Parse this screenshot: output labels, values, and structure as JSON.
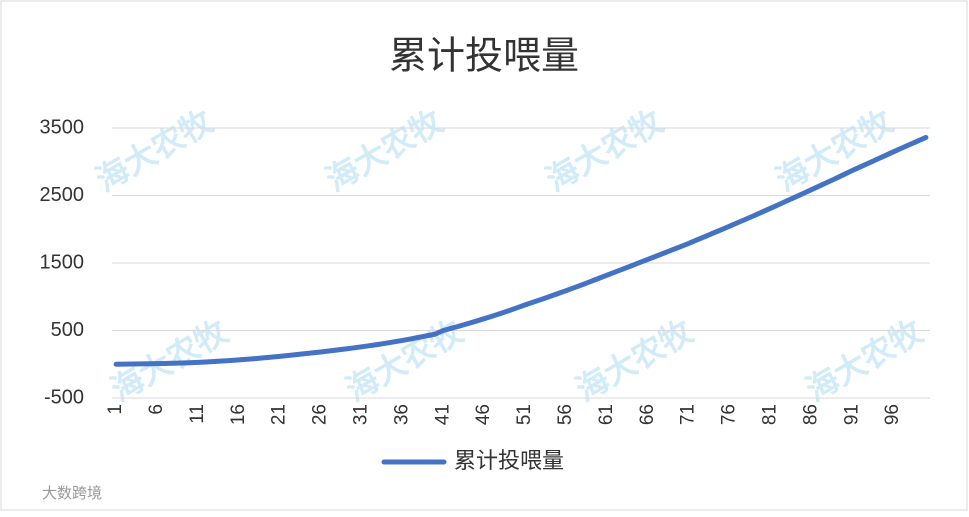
{
  "chart_data": {
    "type": "line",
    "title": "累计投喂量",
    "categories": [
      "1",
      null,
      null,
      null,
      null,
      "6",
      null,
      null,
      null,
      null,
      "11",
      null,
      null,
      null,
      null,
      "16",
      null,
      null,
      null,
      null,
      "21",
      null,
      null,
      null,
      null,
      "26",
      null,
      null,
      null,
      null,
      "31",
      null,
      null,
      null,
      null,
      "36",
      null,
      null,
      null,
      null,
      "41",
      null,
      null,
      null,
      null,
      "46",
      null,
      null,
      null,
      null,
      "51",
      null,
      null,
      null,
      null,
      "56",
      null,
      null,
      null,
      null,
      "61",
      null,
      null,
      null,
      null,
      "66",
      null,
      null,
      null,
      null,
      "71",
      null,
      null,
      null,
      null,
      "76",
      null,
      null,
      null,
      null,
      "81",
      null,
      null,
      null,
      null,
      "86",
      null,
      null,
      null,
      null,
      "91",
      null,
      null,
      null,
      null,
      "96",
      null,
      null,
      null,
      null
    ],
    "series": [
      {
        "name": "累计投喂量",
        "color": "#4472c4",
        "values": [
          0,
          2,
          4,
          6,
          8,
          10,
          12,
          15,
          18,
          22,
          28,
          34,
          40,
          48,
          56,
          65,
          74,
          84,
          94,
          105,
          117,
          129,
          142,
          155,
          168,
          182,
          196,
          211,
          226,
          242,
          258,
          275,
          293,
          312,
          332,
          353,
          375,
          398,
          422,
          446,
          500,
          533,
          567,
          602,
          638,
          675,
          713,
          752,
          793,
          836,
          880,
          920,
          961,
          1003,
          1046,
          1090,
          1134,
          1179,
          1225,
          1272,
          1320,
          1366,
          1412,
          1459,
          1506,
          1553,
          1600,
          1647,
          1695,
          1742,
          1790,
          1841,
          1892,
          1943,
          1994,
          2046,
          2098,
          2150,
          2202,
          2256,
          2310,
          2365,
          2420,
          2475,
          2530,
          2586,
          2642,
          2698,
          2754,
          2812,
          2870,
          2925,
          2980,
          3035,
          3090,
          3145,
          3200,
          3254,
          3307,
          3360
        ]
      }
    ],
    "ylim": [
      -500,
      3500
    ],
    "yticks": [
      -500,
      500,
      1500,
      2500,
      3500
    ],
    "grid": true,
    "legend": "bottom",
    "watermark": "海大农牧",
    "logo": "大数跨境"
  }
}
